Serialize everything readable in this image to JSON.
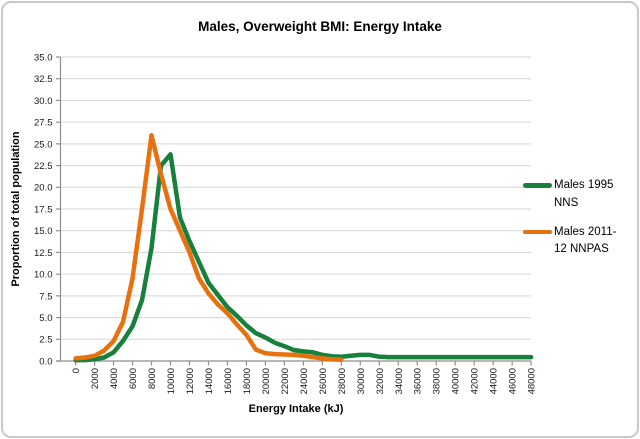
{
  "chart": {
    "title": "Males, Overweight BMI: Energy Intake",
    "y_axis_title": "Proportion of total population",
    "x_axis_title": "Energy Intake (kJ)"
  },
  "legend": {
    "items": [
      {
        "label": "Males 1995 NNS",
        "color": "#17803D"
      },
      {
        "label": "Males 2011-12 NNPAS",
        "color": "#E8710F"
      }
    ]
  },
  "chart_data": {
    "type": "line",
    "title": "Males, Overweight BMI: Energy Intake",
    "xlabel": "Energy Intake (kJ)",
    "ylabel": "Proportion of total population",
    "ylim": [
      0,
      35
    ],
    "ytick_step": 2.5,
    "xtick_label_every_kJ": 2000,
    "grid": "horizontal",
    "legend_position": "right",
    "x_kJ": [
      0,
      1000,
      2000,
      3000,
      4000,
      5000,
      6000,
      7000,
      8000,
      9000,
      10000,
      11000,
      12000,
      13000,
      14000,
      15000,
      16000,
      17000,
      18000,
      19000,
      20000,
      21000,
      22000,
      23000,
      24000,
      25000,
      26000,
      27000,
      28000,
      29000,
      30000,
      31000,
      32000,
      33000,
      34000,
      35000,
      36000,
      37000,
      38000,
      39000,
      40000,
      41000,
      42000,
      43000,
      44000,
      45000,
      46000,
      47000,
      48000
    ],
    "series": [
      {
        "name": "Males 1995 NNS",
        "color": "#17803D",
        "values": [
          0.1,
          0.1,
          0.2,
          0.4,
          1.0,
          2.3,
          4.0,
          7.0,
          13.0,
          22.5,
          23.8,
          16.5,
          13.8,
          11.4,
          9.0,
          7.6,
          6.2,
          5.2,
          4.1,
          3.2,
          2.7,
          2.1,
          1.7,
          1.25,
          1.1,
          1.0,
          0.7,
          0.55,
          0.5,
          0.6,
          0.7,
          0.7,
          0.5,
          0.45,
          0.45,
          0.45,
          0.45,
          0.45,
          0.45,
          0.45,
          0.45,
          0.45,
          0.45,
          0.45,
          0.45,
          0.45,
          0.45,
          0.45,
          0.45
        ]
      },
      {
        "name": "Males 2011-12 NNPAS",
        "color": "#E8710F",
        "values": [
          0.3,
          0.4,
          0.6,
          1.2,
          2.3,
          4.5,
          9.5,
          17.5,
          26.0,
          21.5,
          17.5,
          15.0,
          12.5,
          9.5,
          7.8,
          6.5,
          5.5,
          4.2,
          3.0,
          1.3,
          0.9,
          0.8,
          0.75,
          0.7,
          0.6,
          0.45,
          0.3,
          0.2,
          0.15
        ]
      }
    ]
  }
}
